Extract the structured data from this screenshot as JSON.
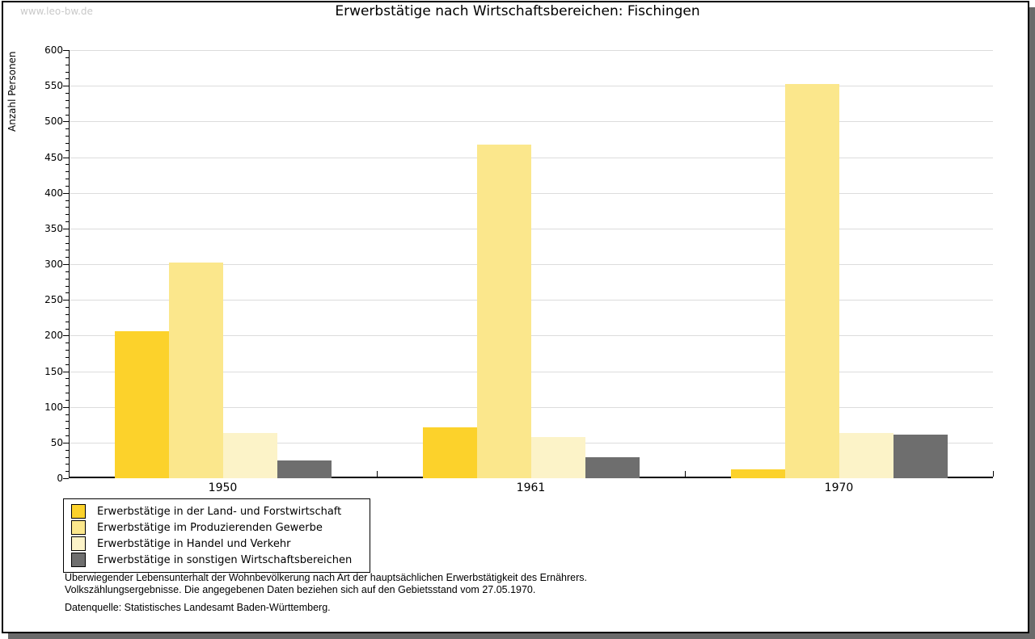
{
  "watermark": "www.leo-bw.de",
  "chart_data": {
    "type": "bar",
    "title": "Erwerbstätige nach Wirtschaftsbereichen: Fischingen",
    "ylabel": "Anzahl Personen",
    "xlabel": "",
    "categories": [
      "1950",
      "1961",
      "1970"
    ],
    "series": [
      {
        "name": "Erwerbstätige in der Land- und Forstwirtschaft",
        "color": "#FCD22B",
        "values": [
          206,
          71,
          12
        ]
      },
      {
        "name": "Erwerbstätige im Produzierenden Gewerbe",
        "color": "#FBE78C",
        "values": [
          302,
          468,
          552
        ]
      },
      {
        "name": "Erwerbstätige in Handel und Verkehr",
        "color": "#FCF3C8",
        "values": [
          64,
          58,
          64
        ]
      },
      {
        "name": "Erwerbstätige in sonstigen Wirtschaftsbereichen",
        "color": "#6E6E6E",
        "values": [
          25,
          30,
          61
        ]
      }
    ],
    "ylim": [
      0,
      600
    ],
    "ytick_step": 50,
    "yminor_step": 10,
    "grid": true,
    "legend_position": "bottom-left"
  },
  "footnotes": [
    "Überwiegender Lebensunterhalt der Wohnbevölkerung nach Art der hauptsächlichen Erwerbstätigkeit des Ernährers.",
    "Volkszählungsergebnisse. Die angegebenen Daten beziehen sich auf den Gebietsstand vom 27.05.1970."
  ],
  "source": "Datenquelle: Statistisches Landesamt Baden-Württemberg."
}
